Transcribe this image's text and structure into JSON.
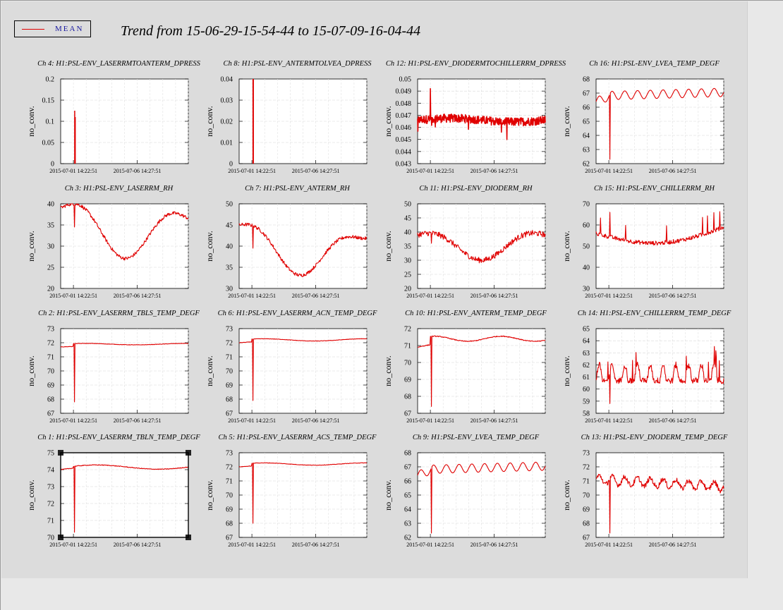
{
  "legend": {
    "label": "MEAN",
    "color": "#e00000"
  },
  "title": "Trend from 15-06-29-15-54-44 to 15-07-09-16-04-44",
  "chart_data": [
    {
      "type": "line",
      "title": "Ch 4: H1:PSL-ENV_LASERRMTOANTERM_DPRESS",
      "ylabel": "no_conv.",
      "yticks": [
        "0",
        "0.05",
        "0.1",
        "0.15",
        "0.2"
      ],
      "ylim": [
        0,
        0.2
      ],
      "xticks": [
        "2015-07-01 14:22:51",
        "2015-07-06 14:27:51"
      ],
      "shape": "dpress_a",
      "base": 0.0,
      "amp": 0.0,
      "spike": 0.125,
      "spike_pos": 0.11,
      "selected": false
    },
    {
      "type": "line",
      "title": "Ch 8: H1:PSL-ENV_ANTERMTOLVEA_DPRESS",
      "ylabel": "no_conv.",
      "yticks": [
        "0",
        "0.01",
        "0.02",
        "0.03",
        "0.04"
      ],
      "ylim": [
        0,
        0.04
      ],
      "xticks": [
        "2015-07-01 14:22:51",
        "2015-07-06 14:27:51"
      ],
      "shape": "dpress_b",
      "base": 0.0,
      "amp": 0.0,
      "spike": 0.04,
      "spike_pos": 0.11,
      "selected": false
    },
    {
      "type": "line",
      "title": "Ch 12: H1:PSL-ENV_DIODERMTOCHILLERRM_DPRESS",
      "ylabel": "no_conv.",
      "yticks": [
        "0.043",
        "0.044",
        "0.045",
        "0.046",
        "0.047",
        "0.048",
        "0.049",
        "0.05"
      ],
      "ylim": [
        0.043,
        0.05
      ],
      "xticks": [
        "2015-07-01 14:22:51",
        "2015-07-06 14:27:51"
      ],
      "shape": "noisy",
      "base": 0.0466,
      "amp": 0.0005,
      "spike": 0.0492,
      "spike_pos": 0.1,
      "selected": false
    },
    {
      "type": "line",
      "title": "Ch 16: H1:PSL-ENV_LVEA_TEMP_DEGF",
      "ylabel": "no_conv.",
      "yticks": [
        "62",
        "63",
        "64",
        "65",
        "66",
        "67",
        "68"
      ],
      "ylim": [
        62,
        68
      ],
      "xticks": [
        "2015-07-01 14:22:51",
        "2015-07-06 14:27:51"
      ],
      "shape": "lvea",
      "base": 67.0,
      "amp": 0.3,
      "spike": 62.3,
      "spike_pos": 0.11,
      "selected": false
    },
    {
      "type": "line",
      "title": "Ch 3: H1:PSL-ENV_LASERRM_RH",
      "ylabel": "no_conv.",
      "yticks": [
        "20",
        "25",
        "30",
        "35",
        "40"
      ],
      "ylim": [
        20,
        40
      ],
      "xticks": [
        "2015-07-01 14:22:51",
        "2015-07-06 14:27:51"
      ],
      "shape": "rh_a",
      "base": 35,
      "amp": 1,
      "spike": 34.5,
      "spike_pos": 0.11,
      "selected": false
    },
    {
      "type": "line",
      "title": "Ch 7: H1:PSL-ENV_ANTERM_RH",
      "ylabel": "no_conv.",
      "yticks": [
        "30",
        "35",
        "40",
        "45",
        "50"
      ],
      "ylim": [
        30,
        50
      ],
      "xticks": [
        "2015-07-01 14:22:51",
        "2015-07-06 14:27:51"
      ],
      "shape": "rh_b",
      "base": 40,
      "amp": 1,
      "spike": 39.5,
      "spike_pos": 0.11,
      "selected": false
    },
    {
      "type": "line",
      "title": "Ch 11: H1:PSL-ENV_DIODERM_RH",
      "ylabel": "no_conv.",
      "yticks": [
        "20",
        "25",
        "30",
        "35",
        "40",
        "45",
        "50"
      ],
      "ylim": [
        20,
        50
      ],
      "xticks": [
        "2015-07-01 14:22:51",
        "2015-07-06 14:27:51"
      ],
      "shape": "rh_c",
      "base": 37,
      "amp": 2,
      "spike": 36,
      "spike_pos": 0.11,
      "selected": false
    },
    {
      "type": "line",
      "title": "Ch 15: H1:PSL-ENV_CHILLERRM_RH",
      "ylabel": "no_conv.",
      "yticks": [
        "30",
        "40",
        "50",
        "60",
        "70"
      ],
      "ylim": [
        30,
        70
      ],
      "xticks": [
        "2015-07-01 14:22:51",
        "2015-07-06 14:27:51"
      ],
      "shape": "rh_d",
      "base": 53,
      "amp": 3,
      "spike": 66,
      "spike_pos": 0.11,
      "selected": false
    },
    {
      "type": "line",
      "title": "Ch 2: H1:PSL-ENV_LASERRM_TBLS_TEMP_DEGF",
      "ylabel": "no_conv.",
      "yticks": [
        "67",
        "68",
        "69",
        "70",
        "71",
        "72",
        "73"
      ],
      "ylim": [
        67,
        73
      ],
      "xticks": [
        "2015-07-01 14:22:51",
        "2015-07-06 14:27:51"
      ],
      "shape": "flat",
      "base": 71.9,
      "amp": 0.05,
      "spike": 67.8,
      "spike_pos": 0.11,
      "selected": false
    },
    {
      "type": "line",
      "title": "Ch 6: H1:PSL-ENV_LASERRM_ACN_TEMP_DEGF",
      "ylabel": "no_conv.",
      "yticks": [
        "67",
        "68",
        "69",
        "70",
        "71",
        "72",
        "73"
      ],
      "ylim": [
        67,
        73
      ],
      "xticks": [
        "2015-07-01 14:22:51",
        "2015-07-06 14:27:51"
      ],
      "shape": "flat",
      "base": 72.2,
      "amp": 0.08,
      "spike": 67.9,
      "spike_pos": 0.11,
      "selected": false
    },
    {
      "type": "line",
      "title": "Ch 10: H1:PSL-ENV_ANTERM_TEMP_DEGF",
      "ylabel": "no_conv.",
      "yticks": [
        "67",
        "68",
        "69",
        "70",
        "71",
        "72"
      ],
      "ylim": [
        67,
        72
      ],
      "xticks": [
        "2015-07-01 14:22:51",
        "2015-07-06 14:27:51"
      ],
      "shape": "flat_wave",
      "base": 71.4,
      "amp": 0.15,
      "spike": 67.4,
      "spike_pos": 0.11,
      "selected": false
    },
    {
      "type": "line",
      "title": "Ch 14: H1:PSL-ENV_CHILLERRM_TEMP_DEGF",
      "ylabel": "no_conv.",
      "yticks": [
        "58",
        "59",
        "60",
        "61",
        "62",
        "63",
        "64",
        "65"
      ],
      "ylim": [
        58,
        65
      ],
      "xticks": [
        "2015-07-01 14:22:51",
        "2015-07-06 14:27:51"
      ],
      "shape": "chiller_t",
      "base": 61.2,
      "amp": 1.2,
      "spike": 58.8,
      "spike_pos": 0.11,
      "selected": false
    },
    {
      "type": "line",
      "title": "Ch 1: H1:PSL-ENV_LASERRM_TBLN_TEMP_DEGF",
      "ylabel": "no_conv.",
      "yticks": [
        "70",
        "71",
        "72",
        "73",
        "74",
        "75"
      ],
      "ylim": [
        70,
        75
      ],
      "xticks": [
        "2015-07-01 14:22:51",
        "2015-07-06 14:27:51"
      ],
      "shape": "tbln",
      "base": 74.1,
      "amp": 0.15,
      "spike": 70.3,
      "spike_pos": 0.11,
      "selected": true
    },
    {
      "type": "line",
      "title": "Ch 5: H1:PSL-ENV_LASERRM_ACS_TEMP_DEGF",
      "ylabel": "no_conv.",
      "yticks": [
        "67",
        "68",
        "69",
        "70",
        "71",
        "72",
        "73"
      ],
      "ylim": [
        67,
        73
      ],
      "xticks": [
        "2015-07-01 14:22:51",
        "2015-07-06 14:27:51"
      ],
      "shape": "flat",
      "base": 72.2,
      "amp": 0.08,
      "spike": 68.0,
      "spike_pos": 0.11,
      "selected": false
    },
    {
      "type": "line",
      "title": "Ch 9: H1:PSL-ENV_LVEA_TEMP_DEGF",
      "ylabel": "no_conv.",
      "yticks": [
        "62",
        "63",
        "64",
        "65",
        "66",
        "67",
        "68"
      ],
      "ylim": [
        62,
        68
      ],
      "xticks": [
        "2015-07-01 14:22:51",
        "2015-07-06 14:27:51"
      ],
      "shape": "lvea",
      "base": 67.0,
      "amp": 0.3,
      "spike": 62.3,
      "spike_pos": 0.11,
      "selected": false
    },
    {
      "type": "line",
      "title": "Ch 13: H1:PSL-ENV_DIODERM_TEMP_DEGF",
      "ylabel": "no_conv.",
      "yticks": [
        "67",
        "68",
        "69",
        "70",
        "71",
        "72",
        "73"
      ],
      "ylim": [
        67,
        73
      ],
      "xticks": [
        "2015-07-01 14:22:51",
        "2015-07-06 14:27:51"
      ],
      "shape": "diode_t",
      "base": 71.0,
      "amp": 0.35,
      "spike": 67.3,
      "spike_pos": 0.11,
      "selected": false
    }
  ]
}
